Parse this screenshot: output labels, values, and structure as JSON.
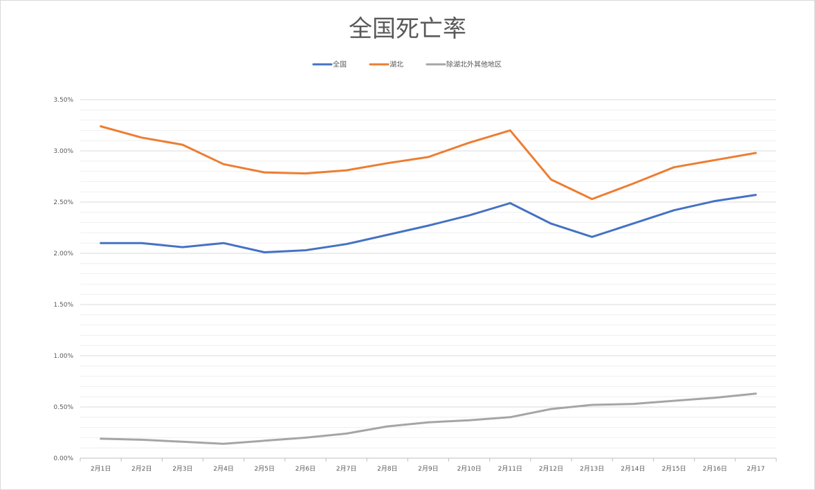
{
  "chart_data": {
    "type": "line",
    "title": "全国死亡率",
    "xlabel": "",
    "ylabel": "",
    "categories": [
      "2月1日",
      "2月2日",
      "2月3日",
      "2月4日",
      "2月5日",
      "2月6日",
      "2月7日",
      "2月8日",
      "2月9日",
      "2月10日",
      "2月11日",
      "2月12日",
      "2月13日",
      "2月14日",
      "2月15日",
      "2月16日",
      "2月17"
    ],
    "yticks": [
      "0.00%",
      "0.50%",
      "1.00%",
      "1.50%",
      "2.00%",
      "2.50%",
      "3.00%",
      "3.50%"
    ],
    "ylim": [
      0,
      3.5
    ],
    "y_unit": "%",
    "grid": true,
    "minor_gridlines": true,
    "legend_position": "top",
    "series": [
      {
        "name": "全国",
        "color": "#4472C4",
        "values": [
          2.1,
          2.1,
          2.06,
          2.1,
          2.01,
          2.03,
          2.09,
          2.18,
          2.27,
          2.37,
          2.49,
          2.29,
          2.16,
          2.29,
          2.42,
          2.51,
          2.57
        ]
      },
      {
        "name": "湖北",
        "color": "#ED7D31",
        "values": [
          3.24,
          3.13,
          3.06,
          2.87,
          2.79,
          2.78,
          2.81,
          2.88,
          2.94,
          3.08,
          3.2,
          2.72,
          2.53,
          2.68,
          2.84,
          2.91,
          2.98
        ]
      },
      {
        "name": "除湖北外其他地区",
        "color": "#A5A5A5",
        "values": [
          0.19,
          0.18,
          0.16,
          0.14,
          0.17,
          0.2,
          0.24,
          0.31,
          0.35,
          0.37,
          0.4,
          0.48,
          0.52,
          0.53,
          0.56,
          0.59,
          0.63
        ]
      }
    ]
  }
}
